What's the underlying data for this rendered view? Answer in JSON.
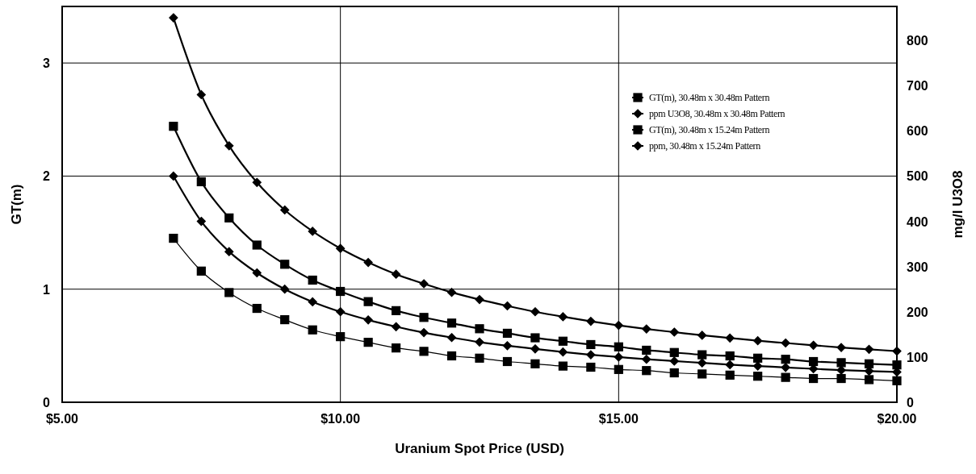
{
  "chart_data": {
    "type": "line",
    "xlabel": "Uranium Spot Price (USD)",
    "ylabel": "GT(m)",
    "y2label": "mg/l U3O8",
    "x": [
      7,
      7.5,
      8,
      8.5,
      9,
      9.5,
      10,
      10.5,
      11,
      11.5,
      12,
      12.5,
      13,
      13.5,
      14,
      14.5,
      15,
      15.5,
      16,
      16.5,
      17,
      17.5,
      18,
      18.5,
      19,
      19.5,
      20
    ],
    "xlim": [
      5,
      20
    ],
    "xticks": [
      {
        "value": 5,
        "label": "$5.00"
      },
      {
        "value": 10,
        "label": "$10.00"
      },
      {
        "value": 15,
        "label": "$15.00"
      },
      {
        "value": 20,
        "label": "$20.00"
      }
    ],
    "ylim": [
      0,
      3.5
    ],
    "yticks": [
      0,
      1,
      2,
      3
    ],
    "y2lim": [
      0,
      875
    ],
    "y2ticks": [
      0,
      100,
      200,
      300,
      400,
      500,
      600,
      700,
      800
    ],
    "grid": true,
    "legend": "top right",
    "line_style": "solid",
    "series": [
      {
        "name": "GT(m), 30.48m x 30.48m Pattern",
        "color": "#000000",
        "marker": "square",
        "values": [
          1.45,
          1.16,
          0.97,
          0.83,
          0.73,
          0.64,
          0.58,
          0.53,
          0.48,
          0.45,
          0.41,
          0.39,
          0.36,
          0.34,
          0.32,
          0.31,
          0.29,
          0.28,
          0.26,
          0.25,
          0.24,
          0.23,
          0.22,
          0.21,
          0.21,
          0.2,
          0.19
        ]
      },
      {
        "name": "ppm U3O8, 30.48m x 30.48m Pattern",
        "color": "#000000",
        "marker": "diamond",
        "axis": "y2",
        "values": [
          500,
          400,
          333,
          286,
          250,
          222,
          200,
          182,
          167,
          154,
          143,
          133,
          125,
          118,
          111,
          105,
          100,
          95,
          91,
          87,
          83,
          80,
          77,
          74,
          71,
          69,
          67
        ]
      },
      {
        "name": "GT(m), 30.48m x 15.24m Pattern",
        "color": "#000000",
        "marker": "square",
        "values": [
          2.44,
          1.95,
          1.63,
          1.39,
          1.22,
          1.08,
          0.98,
          0.89,
          0.81,
          0.75,
          0.7,
          0.65,
          0.61,
          0.57,
          0.54,
          0.51,
          0.49,
          0.46,
          0.44,
          0.42,
          0.41,
          0.39,
          0.38,
          0.36,
          0.35,
          0.34,
          0.33
        ]
      },
      {
        "name": "ppm, 30.48m x 15.24m Pattern",
        "color": "#000000",
        "marker": "diamond",
        "axis": "y2",
        "values": [
          850,
          680,
          567,
          486,
          425,
          378,
          340,
          309,
          283,
          262,
          243,
          227,
          213,
          200,
          189,
          179,
          170,
          162,
          155,
          148,
          142,
          136,
          131,
          126,
          121,
          117,
          113
        ]
      }
    ]
  }
}
